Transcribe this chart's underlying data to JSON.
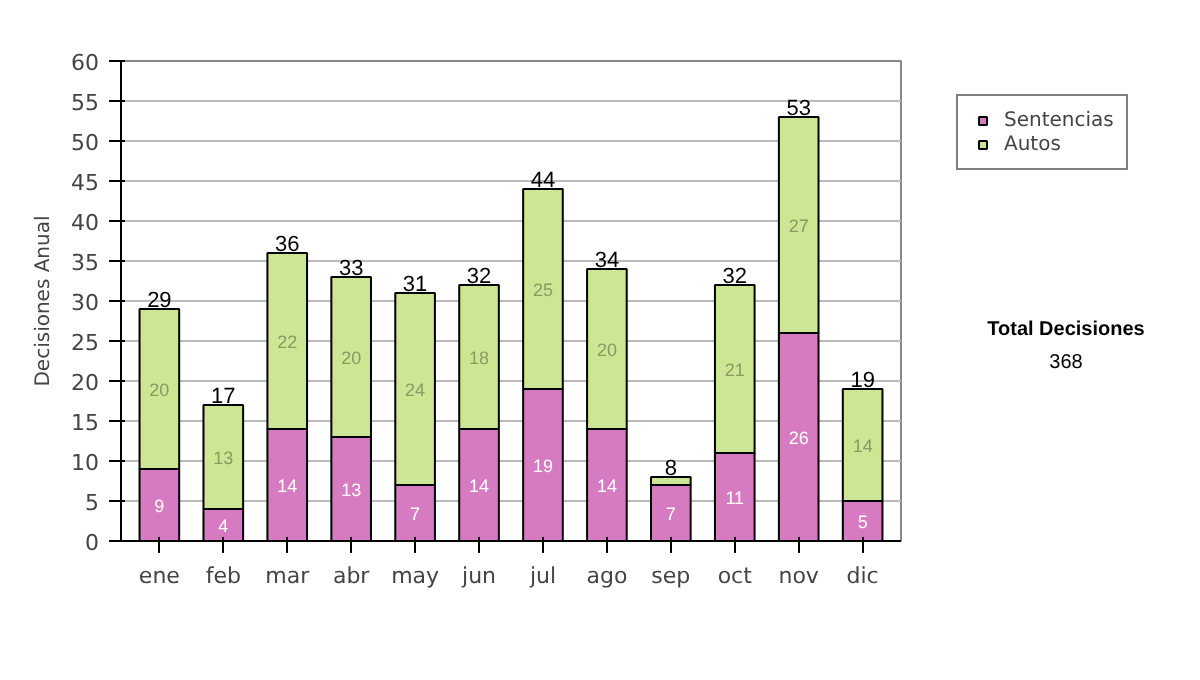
{
  "chart_data": {
    "type": "bar",
    "stacked": true,
    "ylabel": "Decisiones Anual",
    "categories": [
      "ene",
      "feb",
      "mar",
      "abr",
      "may",
      "jun",
      "jul",
      "ago",
      "sep",
      "oct",
      "nov",
      "dic"
    ],
    "series": [
      {
        "name": "Sentencias",
        "color": "#d67bc1",
        "values": [
          9,
          4,
          14,
          13,
          7,
          14,
          19,
          14,
          7,
          11,
          26,
          5
        ],
        "value_labels": [
          "9",
          "4",
          "14",
          "13",
          "7",
          "14",
          "19",
          "14",
          "7",
          "11",
          "26",
          "5"
        ]
      },
      {
        "name": "Autos",
        "color": "#cde693",
        "values": [
          20,
          13,
          22,
          20,
          24,
          18,
          25,
          20,
          1,
          21,
          27,
          14
        ],
        "value_labels": [
          "20",
          "13",
          "22",
          "20",
          "24",
          "18",
          "25",
          "20",
          null,
          "21",
          "27",
          "14"
        ]
      }
    ],
    "totals": [
      "29",
      "17",
      "36",
      "33",
      "31",
      "32",
      "44",
      "34",
      "8",
      "32",
      "53",
      "19"
    ],
    "ylim": [
      0,
      60
    ],
    "yticks": [
      0,
      5,
      10,
      15,
      20,
      25,
      30,
      35,
      40,
      45,
      50,
      55,
      60
    ],
    "grid": "y",
    "legend": "right",
    "annotations": [
      "Total Decisiones",
      "368"
    ]
  }
}
